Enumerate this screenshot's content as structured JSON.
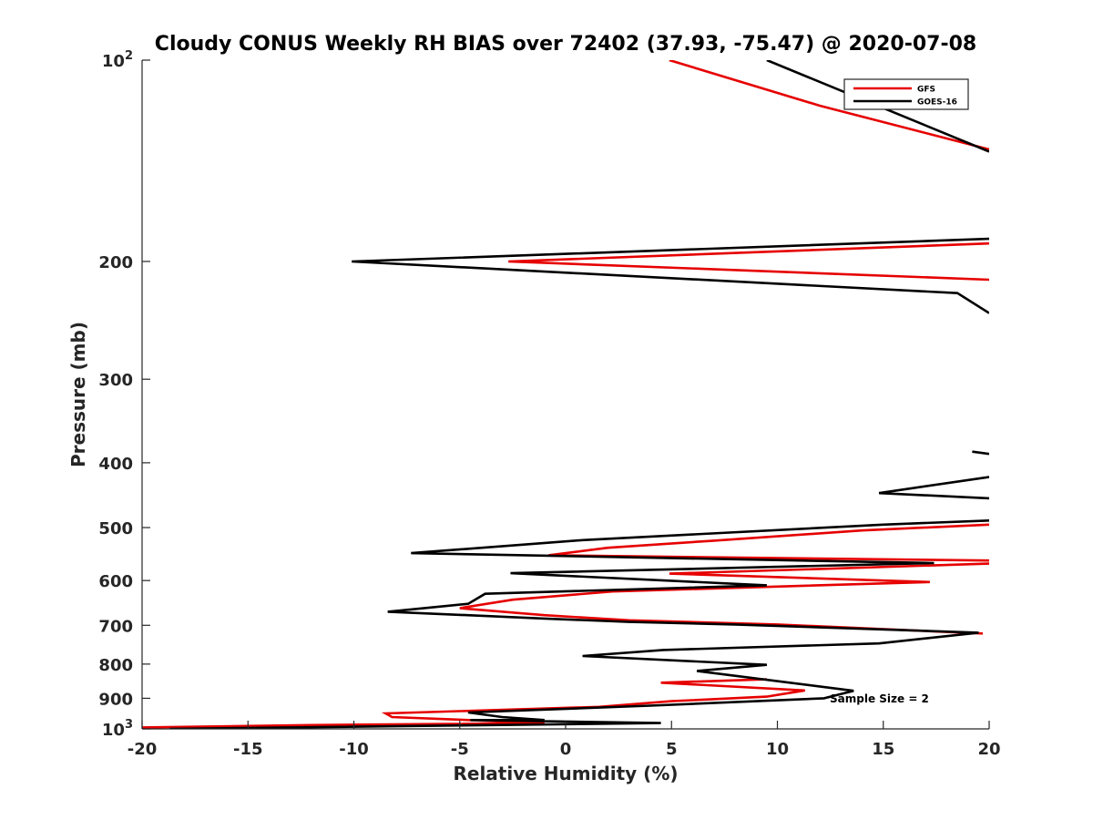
{
  "chart_data": {
    "type": "line",
    "title": "Cloudy CONUS Weekly RH BIAS over 72402 (37.93, -75.47) @ 2020-07-08",
    "xlabel": "Relative Humidity (%)",
    "ylabel": "Pressure (mb)",
    "xlim": [
      -20,
      20
    ],
    "ylim": [
      100,
      1000
    ],
    "y_scale": "log",
    "y_reversed": true,
    "grid": false,
    "legend_position": "top-right",
    "x_ticks": [
      "-20",
      "-15",
      "-10",
      "-5",
      "0",
      "5",
      "10",
      "15",
      "20"
    ],
    "y_ticks": [
      {
        "value": 100,
        "base": "10",
        "exp": "2"
      },
      {
        "value": 200,
        "label": "200"
      },
      {
        "value": 300,
        "label": "300"
      },
      {
        "value": 400,
        "label": "400"
      },
      {
        "value": 500,
        "label": "500"
      },
      {
        "value": 600,
        "label": "600"
      },
      {
        "value": 700,
        "label": "700"
      },
      {
        "value": 800,
        "label": "800"
      },
      {
        "value": 900,
        "label": "900"
      },
      {
        "value": 1000,
        "base": "10",
        "exp": "3"
      }
    ],
    "series": [
      {
        "name": "GFS",
        "color": "#e60000",
        "segments": [
          [
            [
              4.9,
              100
            ],
            [
              12,
              117
            ],
            [
              20,
              136
            ]
          ],
          [
            [
              20,
              188
            ],
            [
              -2.7,
              200
            ],
            [
              20,
              213
            ]
          ],
          [
            [
              20,
              495
            ],
            [
              14,
              505
            ],
            [
              7,
              523
            ],
            [
              2,
              536
            ],
            [
              -0.8,
              550
            ],
            [
              7,
              554
            ],
            [
              20,
              560
            ]
          ],
          [
            [
              20,
              566
            ],
            [
              4.9,
              586
            ],
            [
              17.2,
              603
            ],
            [
              2.2,
              623
            ],
            [
              -2.5,
              641
            ],
            [
              -5,
              660
            ],
            [
              -1,
              676
            ],
            [
              3,
              688
            ],
            [
              10,
              698
            ],
            [
              19.7,
              720
            ]
          ],
          [
            [
              9.5,
              843
            ],
            [
              4.5,
              853
            ],
            [
              11.3,
              876
            ],
            [
              9.5,
              895
            ],
            [
              5,
              909
            ],
            [
              1.6,
              927
            ],
            [
              -8.5,
              948
            ],
            [
              -8.2,
              960
            ],
            [
              -1,
              980
            ],
            [
              -12,
              987
            ],
            [
              -20,
              995
            ]
          ]
        ]
      },
      {
        "name": "GOES-16",
        "color": "#000000",
        "segments": [
          [
            [
              9.5,
              100
            ],
            [
              20,
              137
            ]
          ],
          [
            [
              20,
              185
            ],
            [
              -10.1,
              200
            ],
            [
              18.5,
              223
            ],
            [
              20,
              239
            ]
          ],
          [
            [
              19.2,
              385
            ],
            [
              20,
              388
            ]
          ],
          [
            [
              20,
              420
            ],
            [
              14.8,
              444
            ],
            [
              20,
              452
            ]
          ],
          [
            [
              20,
              488
            ],
            [
              15,
              495
            ],
            [
              0.8,
              522
            ],
            [
              -7.3,
              546
            ],
            [
              17.4,
              565
            ],
            [
              -2.6,
              585
            ],
            [
              9.5,
              610
            ],
            [
              -3.8,
              628
            ],
            [
              -4.6,
              650
            ],
            [
              -8.4,
              668
            ],
            [
              -1,
              684
            ],
            [
              3,
              692
            ],
            [
              8,
              698
            ],
            [
              19.5,
              718
            ],
            [
              14.8,
              745
            ],
            [
              4.6,
              762
            ],
            [
              0.8,
              778
            ],
            [
              9.5,
              802
            ],
            [
              6.2,
              819
            ],
            [
              13.6,
              877
            ],
            [
              12.2,
              900
            ],
            [
              4,
              923
            ],
            [
              -4.6,
              945
            ],
            [
              -3,
              960
            ],
            [
              -1,
              970
            ],
            [
              -4.5,
              970
            ],
            [
              4.5,
              980
            ],
            [
              -18.7,
              1000
            ]
          ]
        ]
      }
    ],
    "annotations": [
      "Sample Size = 2"
    ]
  }
}
